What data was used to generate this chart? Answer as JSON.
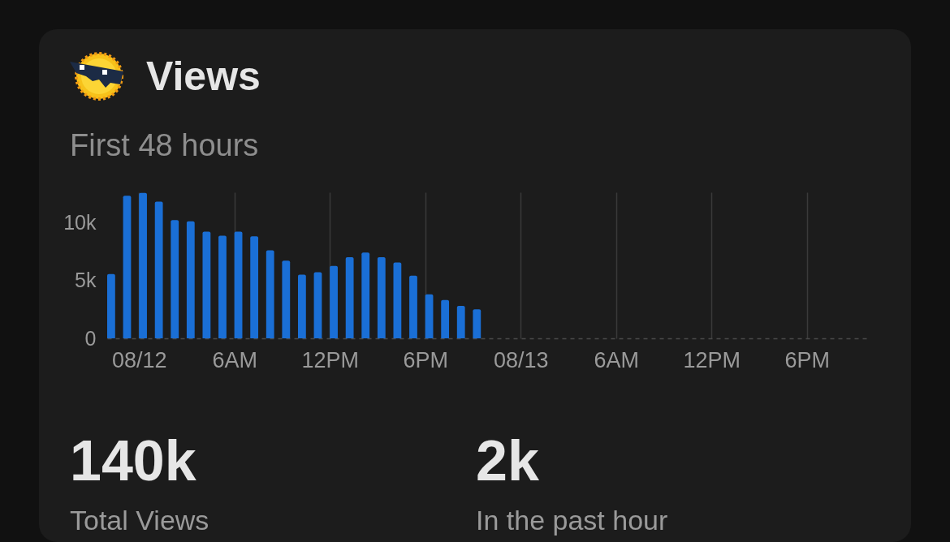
{
  "chart_data": {
    "type": "bar",
    "title": "Views",
    "subtitle": "First 48 hours",
    "x": [
      "--08-11T22:00",
      "--08-11T23:00",
      "--08-12T00:00",
      "--08-12T01:00",
      "--08-12T02:00",
      "--08-12T03:00",
      "--08-12T04:00",
      "--08-12T05:00",
      "--08-12T06:00",
      "--08-12T07:00",
      "--08-12T08:00",
      "--08-12T09:00",
      "--08-12T10:00",
      "--08-12T11:00",
      "--08-12T12:00",
      "--08-12T13:00",
      "--08-12T14:00",
      "--08-12T15:00",
      "--08-12T16:00",
      "--08-12T17:00",
      "--08-12T18:00",
      "--08-12T19:00",
      "--08-12T20:00",
      "--08-12T21:00"
    ],
    "values": [
      5550,
      12300,
      12550,
      11800,
      10200,
      10100,
      9200,
      8850,
      9200,
      8800,
      7600,
      6700,
      5500,
      5700,
      6250,
      7000,
      7400,
      7000,
      6550,
      5400,
      3800,
      3300,
      2800,
      2500
    ],
    "color": "#1a6fd6",
    "xlim": [
      "--08-11T22:00",
      "--08-13T22:00"
    ],
    "xticks": [
      {
        "value": "--08-12T00:00",
        "label": "08/12"
      },
      {
        "value": "--08-12T06:00",
        "label": "6AM"
      },
      {
        "value": "--08-12T12:00",
        "label": "12PM"
      },
      {
        "value": "--08-12T18:00",
        "label": "6PM"
      },
      {
        "value": "--08-13T00:00",
        "label": "08/13"
      },
      {
        "value": "--08-13T06:00",
        "label": "6AM"
      },
      {
        "value": "--08-13T12:00",
        "label": "12PM"
      },
      {
        "value": "--08-13T18:00",
        "label": "6PM"
      }
    ],
    "ylim": [
      0,
      12600
    ],
    "yticks": [
      0,
      {
        "value": 5000,
        "label": "5k"
      },
      {
        "value": 10000,
        "label": "10k"
      }
    ],
    "grid": "x",
    "annotations": [
      "140k",
      "Total Views",
      "2k",
      "In the past hour"
    ]
  }
}
